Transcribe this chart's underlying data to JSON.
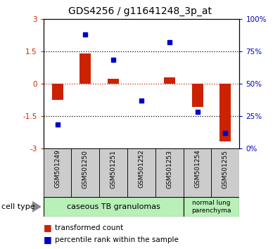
{
  "title": "GDS4256 / g11641248_3p_at",
  "samples": [
    "GSM501249",
    "GSM501250",
    "GSM501251",
    "GSM501252",
    "GSM501253",
    "GSM501254",
    "GSM501255"
  ],
  "red_values": [
    -0.75,
    1.4,
    0.2,
    -0.02,
    0.28,
    -1.1,
    -2.7
  ],
  "blue_values_pct": [
    18,
    88,
    68,
    37,
    82,
    28,
    12
  ],
  "ylim_left": [
    -3,
    3
  ],
  "ylim_right": [
    0,
    100
  ],
  "yticks_left": [
    -3,
    -1.5,
    0,
    1.5,
    3
  ],
  "yticks_right": [
    0,
    25,
    50,
    75,
    100
  ],
  "ytick_labels_left": [
    "-3",
    "-1.5",
    "0",
    "1.5",
    "3"
  ],
  "ytick_labels_right": [
    "0%",
    "25%",
    "50%",
    "75%",
    "100%"
  ],
  "hlines_dotted": [
    -1.5,
    1.5
  ],
  "hline_dashed": 0,
  "red_color": "#cc2200",
  "blue_color": "#0000cc",
  "bar_width": 0.4,
  "group1_count": 5,
  "group2_count": 2,
  "group1_label": "caseous TB granulomas",
  "group2_label": "normal lung\nparenchyma",
  "group_color": "#b8f0b8",
  "legend_red": "transformed count",
  "legend_blue": "percentile rank within the sample",
  "cell_type_label": "cell type",
  "bg_color": "#ffffff",
  "plot_bg": "#ffffff",
  "sample_box_color": "#cccccc"
}
